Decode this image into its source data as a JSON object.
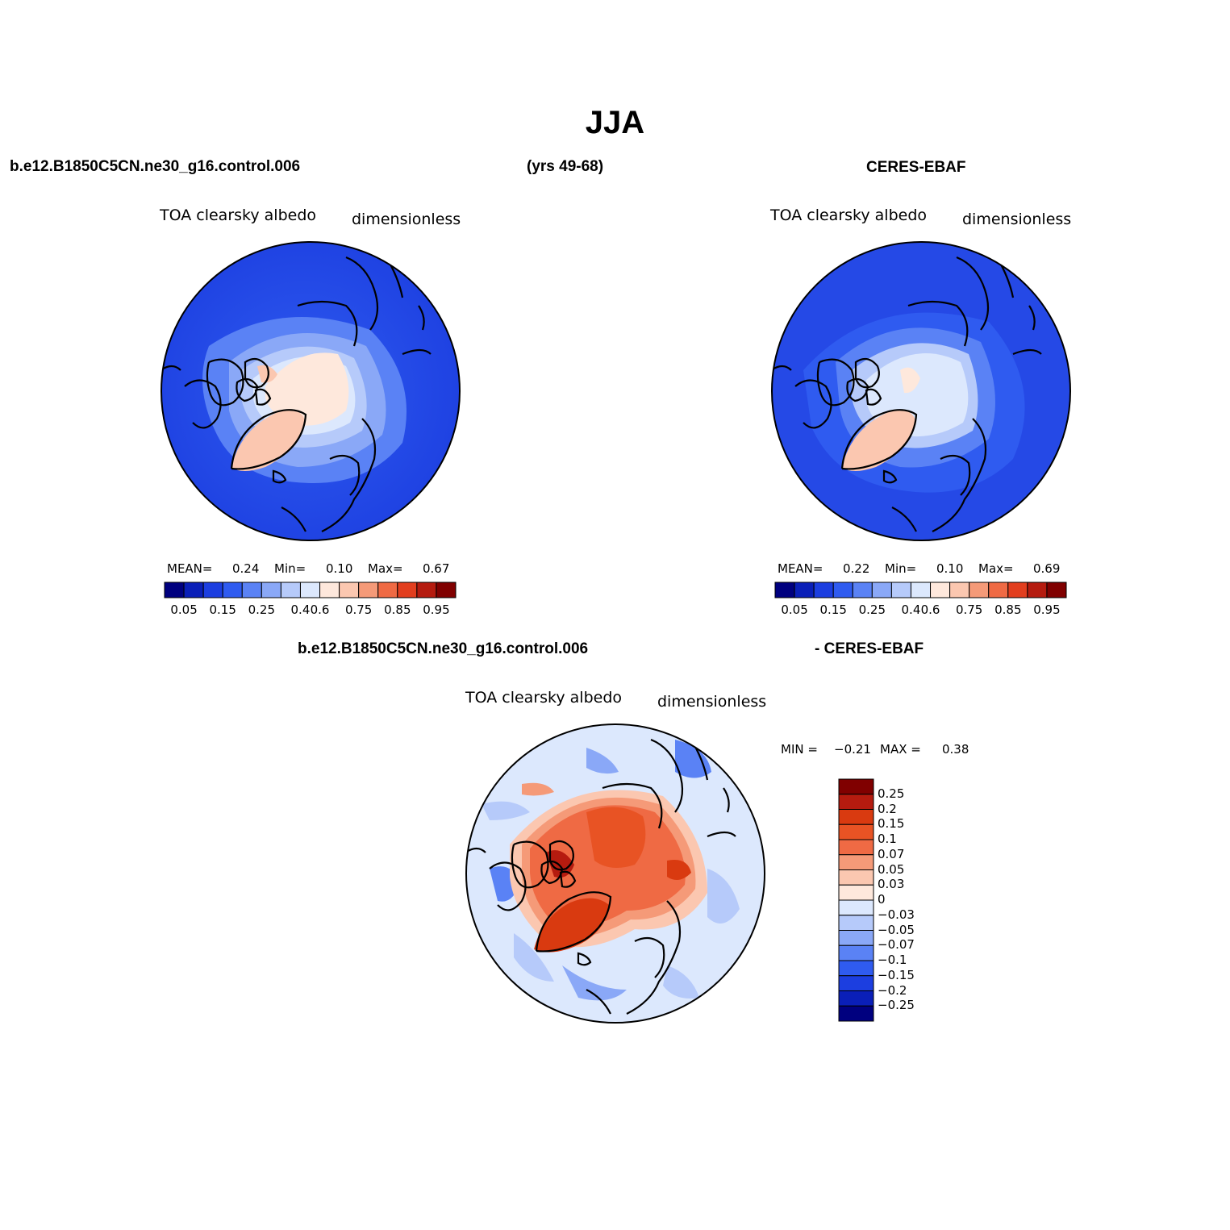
{
  "title": "JJA",
  "case_name": "b.e12.B1850C5CN.ne30_g16.control.006",
  "years": "(yrs 49-68)",
  "obs_name": "CERES-EBAF",
  "diff_case_name": "b.e12.B1850C5CN.ne30_g16.control.006",
  "diff_obs_name": "- CERES-EBAF",
  "colors": {
    "abs_palette": [
      "#00007f",
      "#0a1fb8",
      "#1c3ee0",
      "#2f5bf0",
      "#5a82f5",
      "#8aa8f7",
      "#b6cafa",
      "#dce8fd",
      "#fee8dc",
      "#fbc7b0",
      "#f59a78",
      "#ef6a44",
      "#e23e1e",
      "#b51b0f",
      "#800000"
    ],
    "diff_palette": [
      "#00007f",
      "#0a1fb8",
      "#1c3ee0",
      "#2f5bf0",
      "#5a82f5",
      "#8aa8f7",
      "#b6cafa",
      "#dce8fd",
      "#fee8dc",
      "#fbc7b0",
      "#f59a78",
      "#ef6a44",
      "#e85324",
      "#d93a10",
      "#b51b0f",
      "#800000"
    ]
  },
  "panels": [
    {
      "variable": "TOA clearsky albedo",
      "units": "dimensionless",
      "mean_label": "MEAN=",
      "mean_value": "0.24",
      "min_label": "Min=",
      "min_value": "0.10",
      "max_label": "Max=",
      "max_value": "0.67",
      "colorbar_ticks": [
        "0.05",
        "0.15",
        "0.25",
        "0.4",
        "0.6",
        "0.75",
        "0.85",
        "0.95"
      ]
    },
    {
      "variable": "TOA clearsky albedo",
      "units": "dimensionless",
      "mean_label": "MEAN=",
      "mean_value": "0.22",
      "min_label": "Min=",
      "min_value": "0.10",
      "max_label": "Max=",
      "max_value": "0.69",
      "colorbar_ticks": [
        "0.05",
        "0.15",
        "0.25",
        "0.4",
        "0.6",
        "0.75",
        "0.85",
        "0.95"
      ]
    }
  ],
  "diff_panel": {
    "variable": "TOA clearsky albedo",
    "units": "dimensionless",
    "min_label": "MIN =",
    "min_value": "−0.21",
    "max_label": "MAX =",
    "max_value": "0.38",
    "colorbar_ticks": [
      "0.25",
      "0.2",
      "0.15",
      "0.1",
      "0.07",
      "0.05",
      "0.03",
      "0",
      "−0.03",
      "−0.05",
      "−0.07",
      "−0.1",
      "−0.15",
      "−0.2",
      "−0.25"
    ]
  }
}
